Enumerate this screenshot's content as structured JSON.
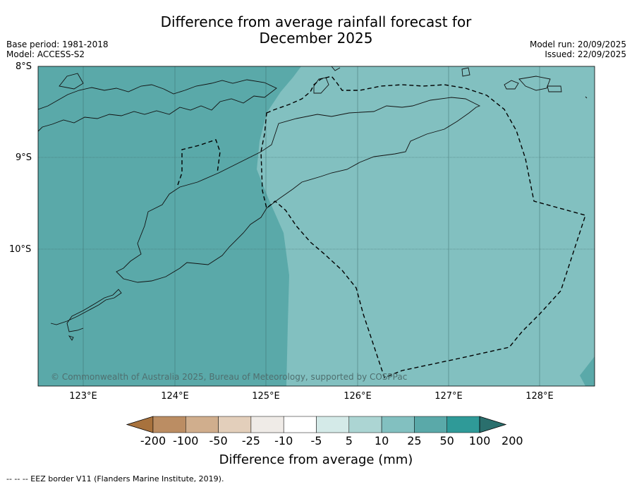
{
  "title": {
    "line1": "Difference from average rainfall forecast for",
    "line2": "December 2025"
  },
  "meta": {
    "base_period": "Base period: 1981-2018",
    "model": "Model: ACCESS-S2",
    "model_run": "Model run: 20/09/2025",
    "issued": "Issued: 22/09/2025"
  },
  "map": {
    "latitude_labels": [
      "8°S",
      "9°S",
      "10°S"
    ],
    "longitude_labels": [
      "123°E",
      "124°E",
      "125°E",
      "126°E",
      "127°E",
      "128°E"
    ],
    "copyright": "© Commonwealth of Australia 2025, Bureau of Meteorology, supported by COSPPac",
    "regions": [
      {
        "name": "west",
        "category": "50 to 100 mm",
        "color": "#5aa9a9"
      },
      {
        "name": "east",
        "category": "25 to 50 mm",
        "color": "#82c0c0"
      }
    ]
  },
  "colorbar": {
    "title": "Difference from average (mm)",
    "ticks": [
      "-200",
      "-100",
      "-50",
      "-25",
      "-10",
      "-5",
      "5",
      "10",
      "25",
      "50",
      "100",
      "200"
    ],
    "colors": [
      "#a8723d",
      "#bb8d63",
      "#d0ae8d",
      "#e3cfbb",
      "#efebe7",
      "#ffffff",
      "#d4eae8",
      "#acd5d3",
      "#82c0c0",
      "#5aa9a9",
      "#2f9a98",
      "#2a6f6d"
    ]
  },
  "footnote": "-- -- -- EEZ border V11 (Flanders Marine Institute, 2019)."
}
